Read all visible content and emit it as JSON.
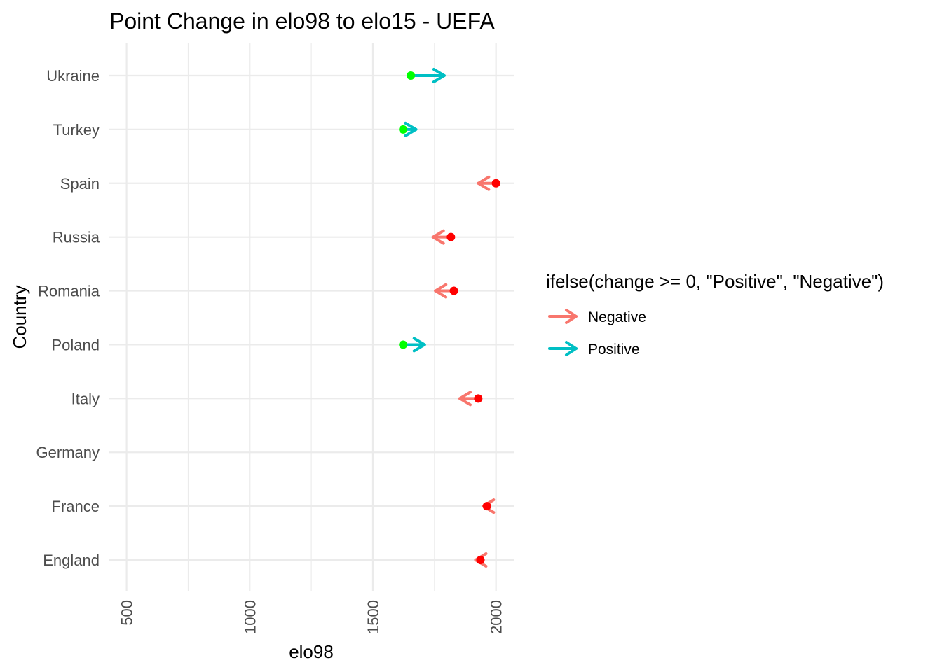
{
  "chart_data": {
    "type": "scatter",
    "title": "Point Change in elo98 to elo15 - UEFA",
    "xlabel": "elo98",
    "ylabel": "Country",
    "xlim": [
      430,
      2075
    ],
    "x_ticks": [
      500,
      1000,
      1500,
      2000
    ],
    "x_tick_labels": [
      "500",
      "1000",
      "1500",
      "2000"
    ],
    "categories": [
      "England",
      "France",
      "Germany",
      "Italy",
      "Poland",
      "Romania",
      "Russia",
      "Spain",
      "Turkey",
      "Ukraine"
    ],
    "grid": true,
    "legend": {
      "title": "ifelse(change >= 0, \"Positive\", \"Negative\")",
      "placement": "right",
      "entries": [
        {
          "label": "Negative",
          "color": "#F8766D"
        },
        {
          "label": "Positive",
          "color": "#00BFC4"
        }
      ]
    },
    "colors": {
      "Negative": "#F8766D",
      "Positive": "#00BFC4",
      "point_positive": "#00FF00",
      "point_negative": "#FF0000"
    },
    "series": [
      {
        "name": "Negative",
        "points": [
          {
            "country": "England",
            "elo98": 1937,
            "elo15": 1917
          },
          {
            "country": "France",
            "elo98": 1963,
            "elo15": 1948
          },
          {
            "country": "Italy",
            "elo98": 1928,
            "elo15": 1853
          },
          {
            "country": "Romania",
            "elo98": 1829,
            "elo15": 1754
          },
          {
            "country": "Russia",
            "elo98": 1817,
            "elo15": 1744
          },
          {
            "country": "Spain",
            "elo98": 2000,
            "elo15": 1928
          }
        ]
      },
      {
        "name": "Positive",
        "points": [
          {
            "country": "Poland",
            "elo98": 1623,
            "elo15": 1710
          },
          {
            "country": "Turkey",
            "elo98": 1623,
            "elo15": 1675
          },
          {
            "country": "Ukraine",
            "elo98": 1654,
            "elo15": 1790
          }
        ]
      }
    ]
  }
}
